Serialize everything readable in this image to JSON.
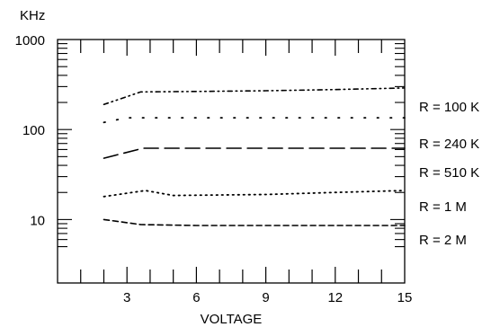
{
  "chart_data": {
    "type": "line",
    "title": "",
    "xlabel": "VOLTAGE",
    "ylabel": "KHz",
    "xlim": [
      0,
      15
    ],
    "ylim": [
      5,
      1000
    ],
    "yscale": "log",
    "grid": false,
    "legend": "right-inline",
    "x_ticks": [
      3,
      6,
      9,
      12,
      15
    ],
    "x_tick_labels": [
      "3",
      "6",
      "9",
      "12",
      "15"
    ],
    "y_ticks": [
      10,
      100,
      1000
    ],
    "y_tick_labels": [
      "10",
      "100",
      "1000"
    ],
    "series": [
      {
        "name": "R = 100 K",
        "dash": "dash-dot-dot",
        "points": [
          [
            2,
            190
          ],
          [
            3.6,
            262
          ],
          [
            6,
            265
          ],
          [
            9,
            270
          ],
          [
            12,
            278
          ],
          [
            15,
            290
          ]
        ]
      },
      {
        "name": "R = 240 K",
        "dash": "dotted-sparse",
        "points": [
          [
            2,
            120
          ],
          [
            3,
            135
          ],
          [
            6,
            135
          ],
          [
            9,
            135
          ],
          [
            12,
            135
          ],
          [
            15,
            135
          ]
        ]
      },
      {
        "name": "R = 510 K",
        "dash": "long-dash",
        "points": [
          [
            2,
            48
          ],
          [
            3.7,
            62
          ],
          [
            6,
            62
          ],
          [
            9,
            62
          ],
          [
            12,
            62
          ],
          [
            15,
            62
          ]
        ]
      },
      {
        "name": "R = 1 M",
        "dash": "dotted-dense",
        "points": [
          [
            2,
            18
          ],
          [
            3.8,
            21
          ],
          [
            5,
            18.5
          ],
          [
            9,
            19
          ],
          [
            12,
            20
          ],
          [
            15,
            21
          ]
        ]
      },
      {
        "name": "R = 2 M",
        "dash": "short-dash",
        "points": [
          [
            2,
            10
          ],
          [
            3.6,
            8.8
          ],
          [
            6,
            8.6
          ],
          [
            9,
            8.6
          ],
          [
            12,
            8.6
          ],
          [
            15,
            8.6
          ]
        ]
      }
    ]
  }
}
